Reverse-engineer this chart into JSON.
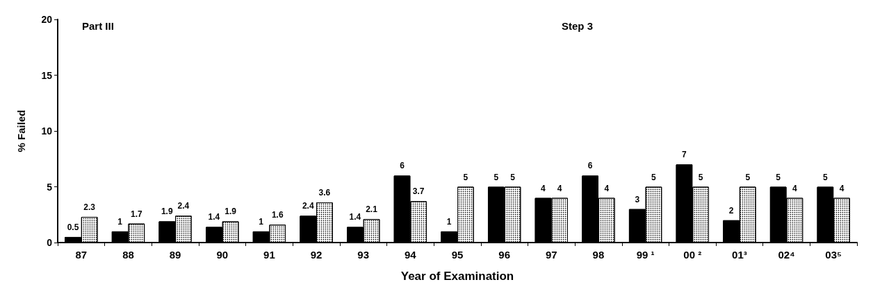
{
  "chart_data": {
    "type": "bar",
    "xlabel": "Year of Examination",
    "ylabel": "% Failed",
    "categories": [
      "87",
      "88",
      "89",
      "90",
      "91",
      "92",
      "93",
      "94",
      "95",
      "96",
      "97",
      "98",
      "99 ¹",
      "00 ²",
      "01³",
      "02⁴",
      "03⁵"
    ],
    "series": [
      {
        "color": "#000000",
        "values": [
          0.5,
          1,
          1.9,
          1.4,
          1,
          2.4,
          1.4,
          6,
          1,
          5,
          4,
          6,
          3,
          7,
          2,
          5,
          5
        ]
      },
      {
        "color": "#ffffff",
        "values": [
          2.3,
          1.7,
          2.4,
          1.9,
          1.6,
          3.6,
          2.1,
          3.7,
          5,
          5,
          4,
          4,
          5,
          5,
          5,
          4,
          4
        ]
      }
    ],
    "ylim": [
      0,
      20
    ],
    "yticks": [
      0,
      5,
      10,
      15,
      20
    ],
    "grid": false,
    "data_labels": true,
    "annotations": [
      "Part III",
      "Step 3"
    ]
  }
}
